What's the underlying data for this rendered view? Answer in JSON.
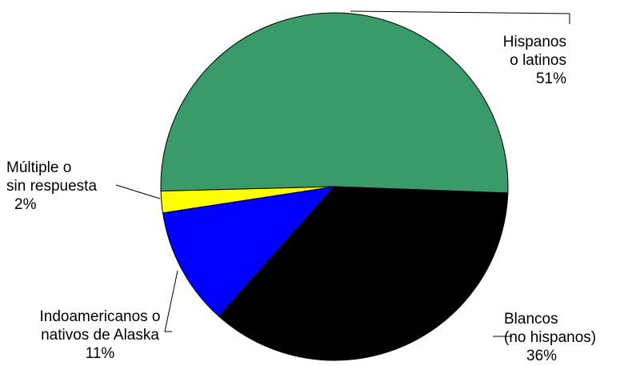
{
  "chart_data": {
    "type": "pie",
    "title": "",
    "slices": [
      {
        "name_lines": [
          "Hispanos",
          "o latinos"
        ],
        "percent_label": "51%",
        "value": 51,
        "color": "#3a9b6a"
      },
      {
        "name_lines": [
          "Blancos",
          "(no hispanos)"
        ],
        "percent_label": "36%",
        "value": 36,
        "color": "#000000"
      },
      {
        "name_lines": [
          "Indoamericanos o",
          "nativos de Alaska"
        ],
        "percent_label": "11%",
        "value": 11,
        "color": "#0000ff"
      },
      {
        "name_lines": [
          "Múltiple o",
          "sin respuesta"
        ],
        "percent_label": "2%",
        "value": 2,
        "color": "#ffff00"
      }
    ],
    "start_direction": "slices drawn clockwise from 12 o'clock in order; Múltiple o sin respuesta ends at 9 o'clock"
  }
}
